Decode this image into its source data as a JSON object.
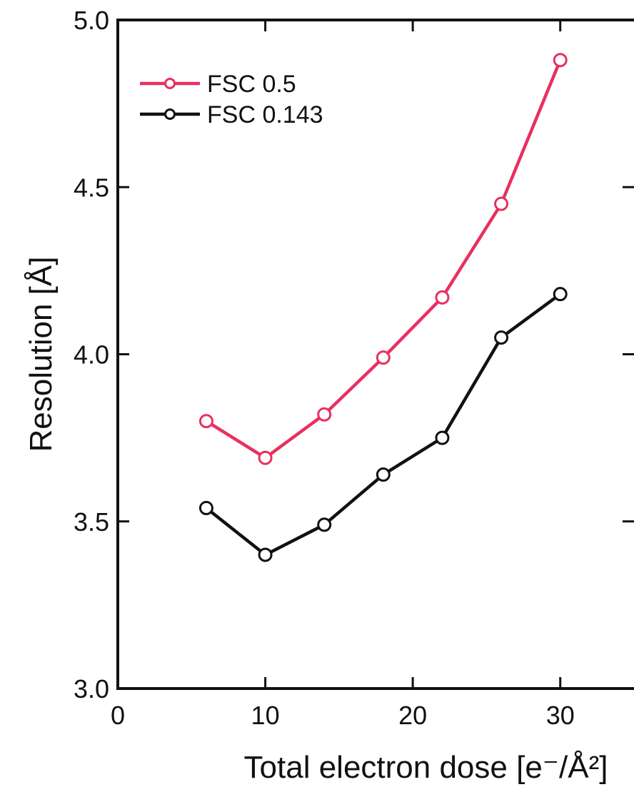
{
  "chart_data": {
    "type": "line",
    "xlabel": "Total electron dose [e⁻/Å²]",
    "ylabel": "Resolution [Å]",
    "xlim": [
      0,
      35
    ],
    "ylim": [
      3.0,
      5.0
    ],
    "x_ticks": [
      "0",
      "10",
      "20",
      "30"
    ],
    "y_ticks": [
      "3.0",
      "3.5",
      "4.0",
      "4.5",
      "5.0"
    ],
    "grid": false,
    "legend_position": "top-left",
    "x": [
      6,
      10,
      14,
      18,
      22,
      26,
      30
    ],
    "series": [
      {
        "name": "FSC 0.5",
        "color": "#e8305f",
        "marker": "open-circle",
        "values": [
          3.8,
          3.69,
          3.82,
          3.99,
          4.17,
          4.45,
          4.88
        ]
      },
      {
        "name": "FSC 0.143",
        "color": "#111111",
        "marker": "open-circle",
        "values": [
          3.54,
          3.4,
          3.49,
          3.64,
          3.75,
          4.05,
          4.18
        ]
      }
    ]
  }
}
